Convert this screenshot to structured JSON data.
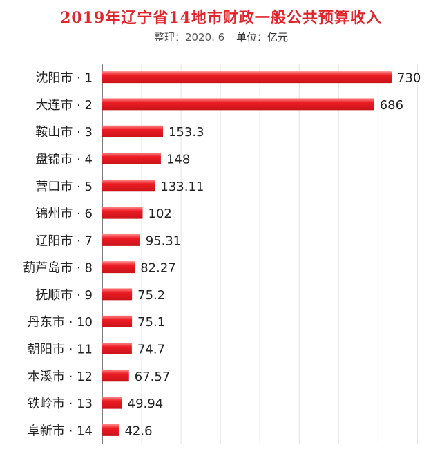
{
  "header": {
    "title": "2019年辽宁省14地市财政一般公共预算收入",
    "note": "整理：2020. 6",
    "unit": "单位：亿元"
  },
  "colors": {
    "bar": "#ec1c24",
    "bar_highlight": "#ff8a8a",
    "title": "#e0252b",
    "grid": "#e4e4e4",
    "axis": "#555555"
  },
  "chart_data": {
    "type": "bar",
    "orientation": "horizontal",
    "categories": [
      "沈阳市 · 1",
      "大连市 · 2",
      "鞍山市 · 3",
      "盘锦市 · 4",
      "营口市 · 5",
      "锦州市 · 6",
      "辽阳市 · 7",
      "葫芦岛市 · 8",
      "抚顺市 · 9",
      "丹东市 · 10",
      "朝阳市 · 11",
      "本溪市 · 12",
      "铁岭市 · 13",
      "阜新市 · 14"
    ],
    "values": [
      730,
      686,
      153.3,
      148,
      133.11,
      102,
      95.31,
      82.27,
      75.2,
      75.1,
      74.7,
      67.57,
      49.94,
      42.6
    ],
    "value_labels": [
      "730",
      "686",
      "153.3",
      "148",
      "133.11",
      "102",
      "95.31",
      "82.27",
      "75.2",
      "75.1",
      "74.7",
      "67.57",
      "49.94",
      "42.6"
    ],
    "title": "2019年辽宁省14地市财政一般公共预算收入",
    "xlim": [
      0,
      800
    ],
    "grid": true,
    "legend": "none"
  }
}
